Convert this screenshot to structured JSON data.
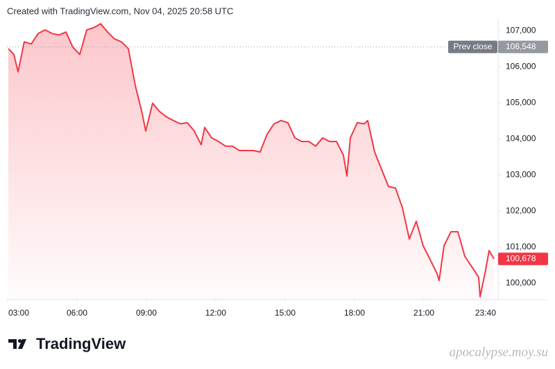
{
  "header": "Created with TradingView.com, Nov 04, 2025 20:58 UTC",
  "logo": "TradingView",
  "watermark": "apocalypse.moy.su",
  "chart_data": {
    "type": "area",
    "color": "#f23645",
    "x": [
      3.03,
      3.27,
      3.45,
      3.72,
      4.02,
      4.32,
      4.62,
      4.92,
      5.22,
      5.52,
      5.82,
      6.12,
      6.42,
      6.72,
      7.02,
      7.32,
      7.62,
      7.92,
      8.22,
      8.52,
      8.82,
      8.97,
      9.27,
      9.57,
      9.87,
      10.17,
      10.47,
      10.77,
      11.07,
      11.37,
      11.52,
      11.82,
      12.12,
      12.42,
      12.72,
      13.02,
      13.32,
      13.62,
      13.92,
      14.22,
      14.52,
      14.82,
      15.12,
      15.42,
      15.72,
      16.02,
      16.32,
      16.62,
      16.92,
      17.22,
      17.52,
      17.67,
      17.82,
      18.12,
      18.42,
      18.57,
      18.87,
      19.17,
      19.47,
      19.77,
      20.07,
      20.37,
      20.67,
      20.97,
      21.27,
      21.57,
      21.66,
      21.87,
      22.17,
      22.47,
      22.77,
      23.07,
      23.37,
      23.43,
      23.67,
      23.82,
      24.03
    ],
    "values": [
      106500,
      106340,
      105860,
      106690,
      106630,
      106920,
      107020,
      106920,
      106880,
      106960,
      106540,
      106340,
      107020,
      107080,
      107190,
      106960,
      106770,
      106690,
      106500,
      105480,
      104710,
      104220,
      104990,
      104760,
      104610,
      104510,
      104420,
      104450,
      104220,
      103840,
      104320,
      104030,
      103930,
      103800,
      103800,
      103680,
      103680,
      103680,
      103640,
      104130,
      104420,
      104510,
      104450,
      104030,
      103930,
      103930,
      103800,
      104030,
      103930,
      103930,
      103550,
      102970,
      104030,
      104450,
      104420,
      104510,
      103640,
      103160,
      102680,
      102640,
      102100,
      101230,
      101720,
      101040,
      100660,
      100270,
      100080,
      101040,
      101430,
      101430,
      100750,
      100460,
      100170,
      99630,
      100370,
      100910,
      100678
    ],
    "xlim": [
      3,
      24.2
    ],
    "ylim": [
      99550,
      107310
    ],
    "xticks": [
      {
        "value": 3,
        "label": "03:00"
      },
      {
        "value": 6,
        "label": "06:00"
      },
      {
        "value": 9,
        "label": "09:00"
      },
      {
        "value": 12,
        "label": "12:00"
      },
      {
        "value": 15,
        "label": "15:00"
      },
      {
        "value": 18,
        "label": "18:00"
      },
      {
        "value": 21,
        "label": "21:00"
      },
      {
        "value": 23.667,
        "label": "23:40"
      }
    ],
    "yticks": [
      {
        "value": 100000,
        "label": "100,000"
      },
      {
        "value": 101000,
        "label": "101,000"
      },
      {
        "value": 102000,
        "label": "102,000"
      },
      {
        "value": 103000,
        "label": "103,000"
      },
      {
        "value": 104000,
        "label": "104,000"
      },
      {
        "value": 105000,
        "label": "105,000"
      },
      {
        "value": 106000,
        "label": "106,000"
      },
      {
        "value": 107000,
        "label": "107,000"
      }
    ],
    "prev_close": {
      "name": "Prev close",
      "value": 106548,
      "label": "106,548"
    },
    "last_price": {
      "value": 100678,
      "label": "100,678"
    },
    "grid": false
  }
}
